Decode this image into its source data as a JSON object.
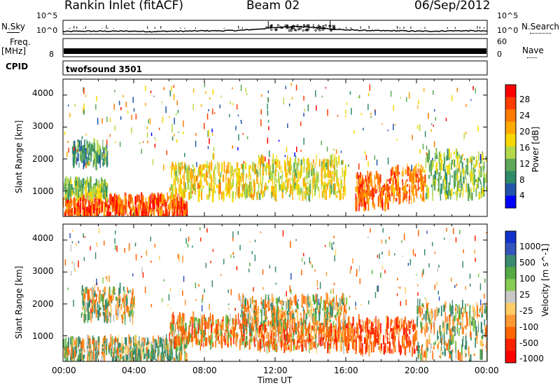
{
  "header": {
    "station": "Rankin Inlet (fitACF)",
    "beam": "Beam 02",
    "date": "06/Sep/2012"
  },
  "top_panels": {
    "nsky_label": "N.Sky",
    "nsky_ticks": [
      "10^5",
      "10^0"
    ],
    "nsearch_label": "N.Search",
    "nsearch_ticks": [
      "10^5",
      "10^0"
    ],
    "freq_label": "Freq.",
    "freq_unit": "[MHz]",
    "freq_ticks": [
      "8"
    ],
    "nave_label": "Nave",
    "nave_ticks": [
      "60",
      "0"
    ],
    "cpid_label": "CPID",
    "cpid_value": "twofsound 3501"
  },
  "panels": {
    "y_label": "Slant Range [km]",
    "y_ticks": [
      "4000",
      "3000",
      "2000",
      "1000"
    ],
    "x_label": "Time UT",
    "x_ticks": [
      "00:00",
      "04:00",
      "08:00",
      "12:00",
      "16:00",
      "20:00",
      "00:00"
    ]
  },
  "power_scale": {
    "label": "Power [dB]",
    "ticks": [
      "28",
      "24",
      "20",
      "16",
      "12",
      "8",
      "4"
    ],
    "colors": [
      "#ff0000",
      "#ff3c00",
      "#ff7a00",
      "#ffaa00",
      "#f6d800",
      "#b4d84a",
      "#5fa85a",
      "#2e8b6a",
      "#2255aa",
      "#0000ff"
    ]
  },
  "velocity_scale": {
    "label": "Velocity [m s^-1]",
    "ticks": [
      "1000",
      "500",
      "100",
      "25",
      "-25",
      "-100",
      "-500",
      "-1000"
    ],
    "colors": [
      "#1133cc",
      "#3355bb",
      "#3a8a70",
      "#55aa44",
      "#88cc55",
      "#c8c8c8",
      "#ffcc66",
      "#ff9933",
      "#ff6600",
      "#ff2200",
      "#ff0000"
    ]
  },
  "chart_data": [
    {
      "type": "line",
      "title": "N.Sky / N.Search",
      "x_range_hours": [
        0,
        24
      ],
      "ylim_log10": [
        0,
        5
      ],
      "x": [
        0,
        1,
        2,
        3,
        4,
        5,
        6,
        7,
        8,
        9,
        10,
        11,
        12,
        13,
        14,
        15,
        16,
        17,
        18,
        19,
        20,
        21,
        22,
        23,
        24
      ],
      "series": [
        {
          "name": "N.Sky",
          "values": [
            0.2,
            0.3,
            0.3,
            0.3,
            0.3,
            0.2,
            0.3,
            0.3,
            0.4,
            0.4,
            0.5,
            0.8,
            1.2,
            1.5,
            1.3,
            0.9,
            0.6,
            0.5,
            0.4,
            0.4,
            0.3,
            0.3,
            0.4,
            0.4,
            0.3
          ]
        }
      ]
    },
    {
      "type": "line",
      "title": "Freq. / Nave",
      "x_range_hours": [
        0,
        24
      ],
      "ylim": [
        0,
        60
      ],
      "series": [
        {
          "name": "Nave",
          "values": [
            19,
            19,
            19,
            19,
            19,
            19,
            19,
            19,
            19,
            19,
            19,
            19,
            19,
            19,
            19,
            19,
            19,
            19,
            19,
            19,
            19,
            19,
            19,
            19,
            19
          ]
        }
      ]
    },
    {
      "type": "heatmap",
      "title": "Power",
      "xlabel": "Time UT",
      "ylabel": "Slant Range [km]",
      "x_range_hours": [
        0,
        24
      ],
      "ylim": [
        200,
        4500
      ],
      "zlabel": "Power [dB]",
      "zlim": [
        0,
        30
      ],
      "regions": [
        {
          "t": [
            0,
            7
          ],
          "r": [
            200,
            800
          ],
          "z": 26
        },
        {
          "t": [
            0,
            2.5
          ],
          "r": [
            800,
            1300
          ],
          "z": 14
        },
        {
          "t": [
            0.5,
            2.5
          ],
          "r": [
            1800,
            2500
          ],
          "z": 10
        },
        {
          "t": [
            6,
            11
          ],
          "r": [
            800,
            1800
          ],
          "z": 18
        },
        {
          "t": [
            11,
            16
          ],
          "r": [
            800,
            2000
          ],
          "z": 17
        },
        {
          "t": [
            16.5,
            18.5
          ],
          "r": [
            500,
            1500
          ],
          "z": 26
        },
        {
          "t": [
            18.5,
            20.5
          ],
          "r": [
            700,
            1700
          ],
          "z": 24
        },
        {
          "t": [
            20.5,
            24
          ],
          "r": [
            800,
            2200
          ],
          "z": 14
        }
      ]
    },
    {
      "type": "heatmap",
      "title": "Velocity",
      "xlabel": "Time UT",
      "ylabel": "Slant Range [km]",
      "x_range_hours": [
        0,
        24
      ],
      "ylim": [
        200,
        4500
      ],
      "zlabel": "Velocity [m s^-1]",
      "zlim": [
        -1000,
        1000
      ],
      "regions": [
        {
          "t": [
            0,
            7
          ],
          "r": [
            200,
            900
          ],
          "z": 60
        },
        {
          "t": [
            1,
            4
          ],
          "r": [
            1500,
            2500
          ],
          "z": 0
        },
        {
          "t": [
            6,
            11
          ],
          "r": [
            700,
            1600
          ],
          "z": -150
        },
        {
          "t": [
            10,
            16
          ],
          "r": [
            1200,
            2200
          ],
          "z": 0
        },
        {
          "t": [
            11,
            16
          ],
          "r": [
            600,
            1300
          ],
          "z": -200
        },
        {
          "t": [
            16,
            20
          ],
          "r": [
            500,
            1500
          ],
          "z": -300
        },
        {
          "t": [
            20,
            24
          ],
          "r": [
            300,
            2000
          ],
          "z": 30
        }
      ]
    }
  ]
}
